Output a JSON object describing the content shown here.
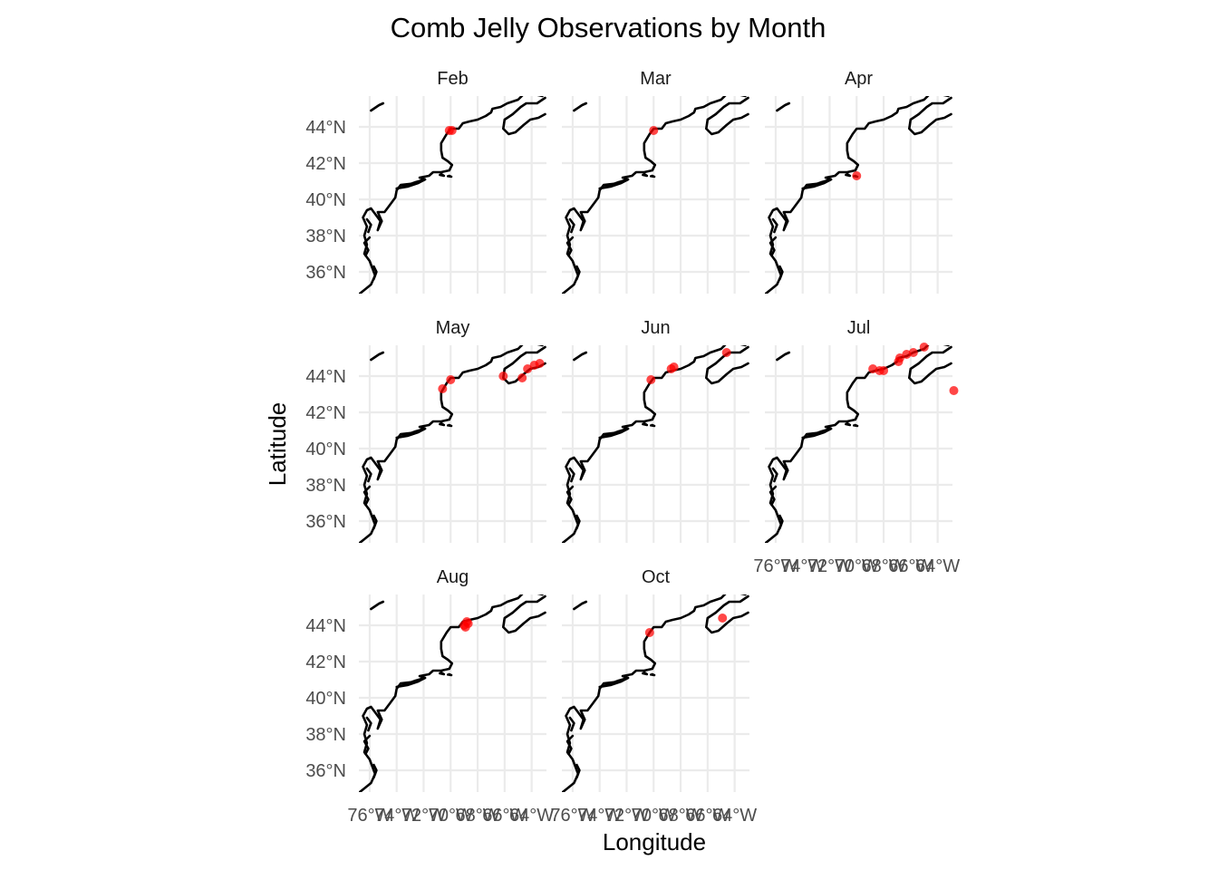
{
  "chart_data": {
    "type": "scatter",
    "title": "Comb Jelly Observations by Month",
    "xlabel": "Longitude",
    "ylabel": "Latitude",
    "xlim": [
      -76.8,
      -62.9
    ],
    "ylim": [
      34.8,
      45.7
    ],
    "x_ticks": [
      -76,
      -74,
      -72,
      -70,
      -68,
      -66,
      -64
    ],
    "x_tick_labels": [
      "76°W",
      "74°W",
      "72°W",
      "70°W",
      "68°W",
      "66°W",
      "64°W"
    ],
    "y_ticks": [
      36,
      38,
      40,
      42,
      44
    ],
    "y_tick_labels": [
      "36°N",
      "38°N",
      "40°N",
      "42°N",
      "44°N"
    ],
    "grid": true,
    "point_color": "#ff0000",
    "coast_color": "#000000",
    "panels": [
      {
        "month": "Feb",
        "points": [
          {
            "lon": -69.9,
            "lat": 43.8
          },
          {
            "lon": -70.1,
            "lat": 43.8
          }
        ]
      },
      {
        "month": "Mar",
        "points": [
          {
            "lon": -70.0,
            "lat": 43.8
          }
        ]
      },
      {
        "month": "Apr",
        "points": [
          {
            "lon": -70.0,
            "lat": 41.3
          }
        ]
      },
      {
        "month": "May",
        "points": [
          {
            "lon": -70.6,
            "lat": 43.3
          },
          {
            "lon": -70.0,
            "lat": 43.8
          },
          {
            "lon": -66.1,
            "lat": 44.0
          },
          {
            "lon": -64.7,
            "lat": 43.9
          },
          {
            "lon": -64.3,
            "lat": 44.4
          },
          {
            "lon": -63.8,
            "lat": 44.6
          },
          {
            "lon": -63.4,
            "lat": 44.7
          }
        ]
      },
      {
        "month": "Jun",
        "points": [
          {
            "lon": -70.2,
            "lat": 43.8
          },
          {
            "lon": -68.7,
            "lat": 44.4
          },
          {
            "lon": -68.5,
            "lat": 44.5
          },
          {
            "lon": -64.6,
            "lat": 45.3
          }
        ]
      },
      {
        "month": "Jul",
        "points": [
          {
            "lon": -68.8,
            "lat": 44.4
          },
          {
            "lon": -68.3,
            "lat": 44.3
          },
          {
            "lon": -68.0,
            "lat": 44.3
          },
          {
            "lon": -66.9,
            "lat": 44.8
          },
          {
            "lon": -66.8,
            "lat": 45.0
          },
          {
            "lon": -66.3,
            "lat": 45.2
          },
          {
            "lon": -65.8,
            "lat": 45.3
          },
          {
            "lon": -65.0,
            "lat": 45.6
          },
          {
            "lon": -62.8,
            "lat": 43.2
          }
        ]
      },
      {
        "month": "Aug",
        "points": [
          {
            "lon": -69.0,
            "lat": 44.0
          },
          {
            "lon": -68.9,
            "lat": 43.9
          },
          {
            "lon": -68.8,
            "lat": 44.2
          },
          {
            "lon": -68.7,
            "lat": 44.1
          }
        ]
      },
      {
        "month": "Oct",
        "points": [
          {
            "lon": -70.3,
            "lat": 43.6
          },
          {
            "lon": -64.9,
            "lat": 44.4
          }
        ]
      }
    ]
  }
}
